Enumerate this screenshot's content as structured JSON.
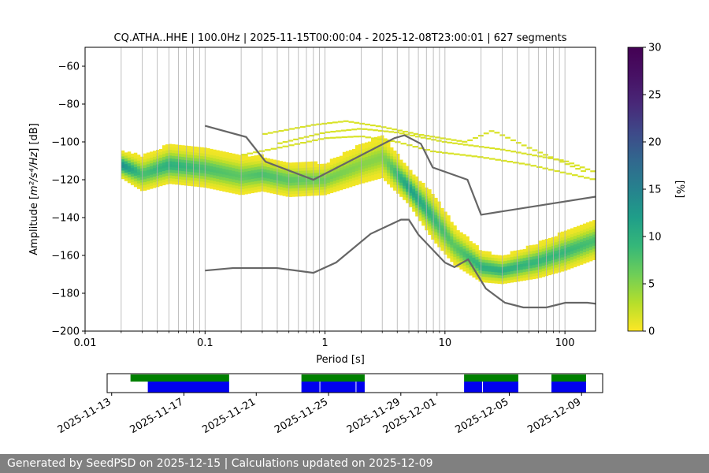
{
  "chart_data": {
    "type": "heatmap",
    "title": "CQ.ATHA..HHE | 100.0Hz | 2025-11-15T00:00:04 - 2025-12-08T23:00:01 | 627 segments",
    "xlabel": "Period [s]",
    "ylabel_prefix": "Amplitude [",
    "ylabel_math": "m²/s⁴/Hz",
    "ylabel_suffix": "] [dB]",
    "x_scale": "log",
    "xlim": [
      0.01,
      180
    ],
    "ylim": [
      -200,
      -50
    ],
    "x_ticks": [
      {
        "value": 0.01,
        "label": "0.01"
      },
      {
        "value": 0.1,
        "label": "0.1"
      },
      {
        "value": 1,
        "label": "1"
      },
      {
        "value": 10,
        "label": "10"
      },
      {
        "value": 100,
        "label": "100"
      }
    ],
    "y_ticks": [
      {
        "value": -60,
        "label": "−60"
      },
      {
        "value": -80,
        "label": "−80"
      },
      {
        "value": -100,
        "label": "−100"
      },
      {
        "value": -120,
        "label": "−120"
      },
      {
        "value": -140,
        "label": "−140"
      },
      {
        "value": -160,
        "label": "−160"
      },
      {
        "value": -180,
        "label": "−180"
      },
      {
        "value": -200,
        "label": "−200"
      }
    ],
    "grid": "vertical-log",
    "colorbar": {
      "label": "[%]",
      "range": [
        0,
        30
      ],
      "colormap": "viridis_r",
      "ticks": [
        {
          "value": 0,
          "label": "0"
        },
        {
          "value": 5,
          "label": "5"
        },
        {
          "value": 10,
          "label": "10"
        },
        {
          "value": 15,
          "label": "15"
        },
        {
          "value": 20,
          "label": "20"
        },
        {
          "value": 25,
          "label": "25"
        },
        {
          "value": 30,
          "label": "30"
        }
      ]
    },
    "psd_mode_band": {
      "description_of_data": "most probable PSD ridge (period, dB, band half-width dB, peak percent)",
      "points": [
        [
          0.02,
          -112,
          7,
          14
        ],
        [
          0.03,
          -117,
          9,
          8
        ],
        [
          0.05,
          -112,
          10,
          10
        ],
        [
          0.1,
          -114,
          10,
          8
        ],
        [
          0.2,
          -118,
          10,
          7
        ],
        [
          0.3,
          -117,
          9,
          8
        ],
        [
          0.5,
          -120,
          9,
          7
        ],
        [
          1,
          -120,
          8,
          6
        ],
        [
          2,
          -112,
          10,
          5
        ],
        [
          3,
          -108,
          11,
          5
        ],
        [
          5,
          -124,
          9,
          12
        ],
        [
          8,
          -140,
          12,
          9
        ],
        [
          12,
          -155,
          10,
          7
        ],
        [
          20,
          -166,
          8,
          10
        ],
        [
          30,
          -168,
          7,
          10
        ],
        [
          60,
          -163,
          9,
          9
        ],
        [
          100,
          -158,
          10,
          9
        ],
        [
          180,
          -152,
          10,
          8
        ]
      ],
      "outlier_traces": [
        [
          [
            0.2,
            -107
          ],
          [
            0.5,
            -102
          ],
          [
            1,
            -98
          ],
          [
            2,
            -97
          ],
          [
            4,
            -100
          ],
          [
            8,
            -105
          ],
          [
            20,
            -108
          ],
          [
            50,
            -112
          ],
          [
            180,
            -120
          ]
        ],
        [
          [
            0.3,
            -96
          ],
          [
            0.8,
            -91
          ],
          [
            1.5,
            -89
          ],
          [
            3,
            -92
          ],
          [
            6,
            -96
          ],
          [
            15,
            -100
          ],
          [
            25,
            -94
          ],
          [
            50,
            -103
          ],
          [
            150,
            -116
          ]
        ],
        [
          [
            0.4,
            -101
          ],
          [
            1,
            -95
          ],
          [
            2,
            -93
          ],
          [
            4,
            -95
          ],
          [
            10,
            -100
          ],
          [
            30,
            -104
          ],
          [
            100,
            -110
          ],
          [
            180,
            -116
          ]
        ]
      ]
    },
    "noise_models": {
      "color": "#666666",
      "high": [
        [
          0.1,
          -91.5
        ],
        [
          0.22,
          -97.4
        ],
        [
          0.32,
          -110.5
        ],
        [
          0.8,
          -120
        ],
        [
          3.8,
          -98
        ],
        [
          4.6,
          -96.5
        ],
        [
          6.3,
          -101
        ],
        [
          7.9,
          -113.5
        ],
        [
          15.4,
          -120
        ],
        [
          20,
          -138.5
        ],
        [
          354.8,
          -126
        ]
      ],
      "low": [
        [
          0.1,
          -168
        ],
        [
          0.17,
          -166.7
        ],
        [
          0.4,
          -166.7
        ],
        [
          0.8,
          -169.2
        ],
        [
          1.24,
          -163.7
        ],
        [
          2.4,
          -148.6
        ],
        [
          4.3,
          -141.1
        ],
        [
          5,
          -141.1
        ],
        [
          6,
          -149
        ],
        [
          10,
          -163.8
        ],
        [
          12,
          -166.2
        ],
        [
          15.6,
          -162.1
        ],
        [
          21.9,
          -177.5
        ],
        [
          31.6,
          -185
        ],
        [
          45,
          -187.5
        ],
        [
          70,
          -187.5
        ],
        [
          101,
          -185
        ],
        [
          154,
          -185
        ],
        [
          328,
          -187.5
        ]
      ]
    }
  },
  "timeline": {
    "ticks": [
      "2025-11-13",
      "2025-11-17",
      "2025-11-21",
      "2025-11-25",
      "2025-11-29",
      "2025-12-01",
      "2025-12-05",
      "2025-12-09"
    ],
    "tick_dates": [
      "2025-11-13",
      "2025-11-17",
      "2025-11-21",
      "2025-11-25",
      "2025-11-29",
      "2025-12-01",
      "2025-12-05",
      "2025-12-09"
    ],
    "range": [
      "2025-11-12T18:00",
      "2025-12-10T04:00"
    ],
    "availability_color": "#008000",
    "used_color": "#0000ee",
    "availability": [
      [
        "2025-11-14T01:00",
        "2025-11-19T12:00"
      ],
      [
        "2025-11-23T12:00",
        "2025-11-27T00:00"
      ],
      [
        "2025-12-02T12:00",
        "2025-12-05T12:00"
      ],
      [
        "2025-12-07T08:00",
        "2025-12-09T06:00"
      ]
    ],
    "used": [
      [
        "2025-11-15T00:00",
        "2025-11-19T12:00"
      ],
      [
        "2025-11-23T12:00",
        "2025-11-24T12:00"
      ],
      [
        "2025-11-24T13:00",
        "2025-11-26T12:00"
      ],
      [
        "2025-11-26T13:00",
        "2025-11-27T00:00"
      ],
      [
        "2025-12-02T12:00",
        "2025-12-03T12:00"
      ],
      [
        "2025-12-03T13:00",
        "2025-12-05T12:00"
      ],
      [
        "2025-12-07T08:00",
        "2025-12-09T06:00"
      ]
    ]
  },
  "footer": {
    "text": "Generated by SeedPSD on 2025-12-15 | Calculations updated on 2025-12-09"
  }
}
